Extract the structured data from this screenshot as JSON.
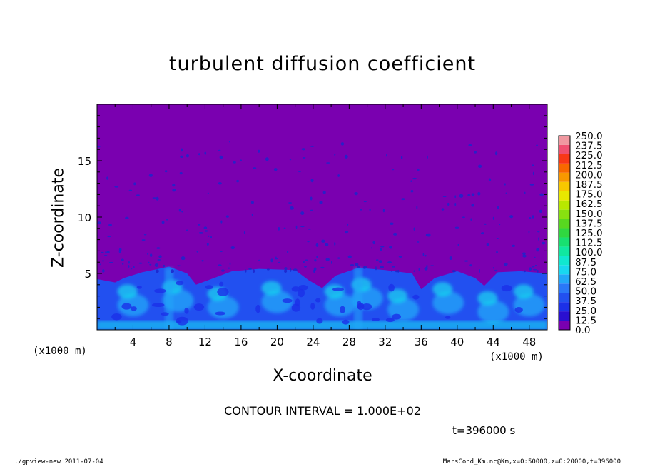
{
  "title": "turbulent diffusion coefficient",
  "footer": {
    "left": "./gpview-new  2011-07-04",
    "right": "MarsCond_Km.nc@Km,x=0:50000,z=0:20000,t=396000"
  },
  "annotations": {
    "contour_interval": "CONTOUR INTERVAL = 1.000E+02",
    "time": "t=396000 s",
    "x_unit_left": "(x1000 m)",
    "x_unit_right": "(x1000 m)"
  },
  "colors": {
    "background": "#7a00b0",
    "speck": "#1c25cc"
  },
  "chart_data": {
    "type": "heatmap",
    "title": "turbulent diffusion coefficient",
    "xlabel": "X-coordinate",
    "ylabel": "Z-coordinate",
    "xlim": [
      0,
      50
    ],
    "ylim": [
      0,
      20
    ],
    "x_ticks": [
      "4",
      "8",
      "12",
      "16",
      "20",
      "24",
      "28",
      "32",
      "36",
      "40",
      "44",
      "48"
    ],
    "y_ticks": [
      "5",
      "10",
      "15"
    ],
    "colorbar": {
      "levels": [
        "0.0",
        "12.5",
        "25.0",
        "37.5",
        "50.0",
        "62.5",
        "75.0",
        "87.5",
        "100.0",
        "112.5",
        "125.0",
        "137.5",
        "150.0",
        "162.5",
        "175.0",
        "187.5",
        "200.0",
        "212.5",
        "225.0",
        "237.5",
        "250.0"
      ],
      "colors": [
        "#7a00b0",
        "#2a0fd0",
        "#1c30e8",
        "#2250f0",
        "#2a78f8",
        "#22a8f8",
        "#18d8f0",
        "#10e8d0",
        "#10e8a0",
        "#18e070",
        "#30d840",
        "#58d820",
        "#88e010",
        "#b8e800",
        "#e8e800",
        "#f8c800",
        "#f89800",
        "#f86800",
        "#f83818",
        "#f05070",
        "#f098a0"
      ]
    },
    "boundary_layer_top": [
      {
        "x": 0,
        "z": 4.5
      },
      {
        "x": 2,
        "z": 4.2
      },
      {
        "x": 3,
        "z": 4.6
      },
      {
        "x": 5,
        "z": 5.1
      },
      {
        "x": 8,
        "z": 5.6
      },
      {
        "x": 10,
        "z": 5.0
      },
      {
        "x": 11,
        "z": 4.0
      },
      {
        "x": 13,
        "z": 4.6
      },
      {
        "x": 15,
        "z": 5.2
      },
      {
        "x": 18,
        "z": 5.4
      },
      {
        "x": 22,
        "z": 5.3
      },
      {
        "x": 23.5,
        "z": 4.4
      },
      {
        "x": 25,
        "z": 3.7
      },
      {
        "x": 26.5,
        "z": 4.8
      },
      {
        "x": 29,
        "z": 5.5
      },
      {
        "x": 32,
        "z": 5.3
      },
      {
        "x": 35,
        "z": 5.0
      },
      {
        "x": 36,
        "z": 3.6
      },
      {
        "x": 37.5,
        "z": 4.6
      },
      {
        "x": 40,
        "z": 5.2
      },
      {
        "x": 42,
        "z": 4.6
      },
      {
        "x": 43,
        "z": 3.9
      },
      {
        "x": 44.5,
        "z": 5.1
      },
      {
        "x": 47,
        "z": 5.2
      },
      {
        "x": 50,
        "z": 5.0
      }
    ]
  }
}
